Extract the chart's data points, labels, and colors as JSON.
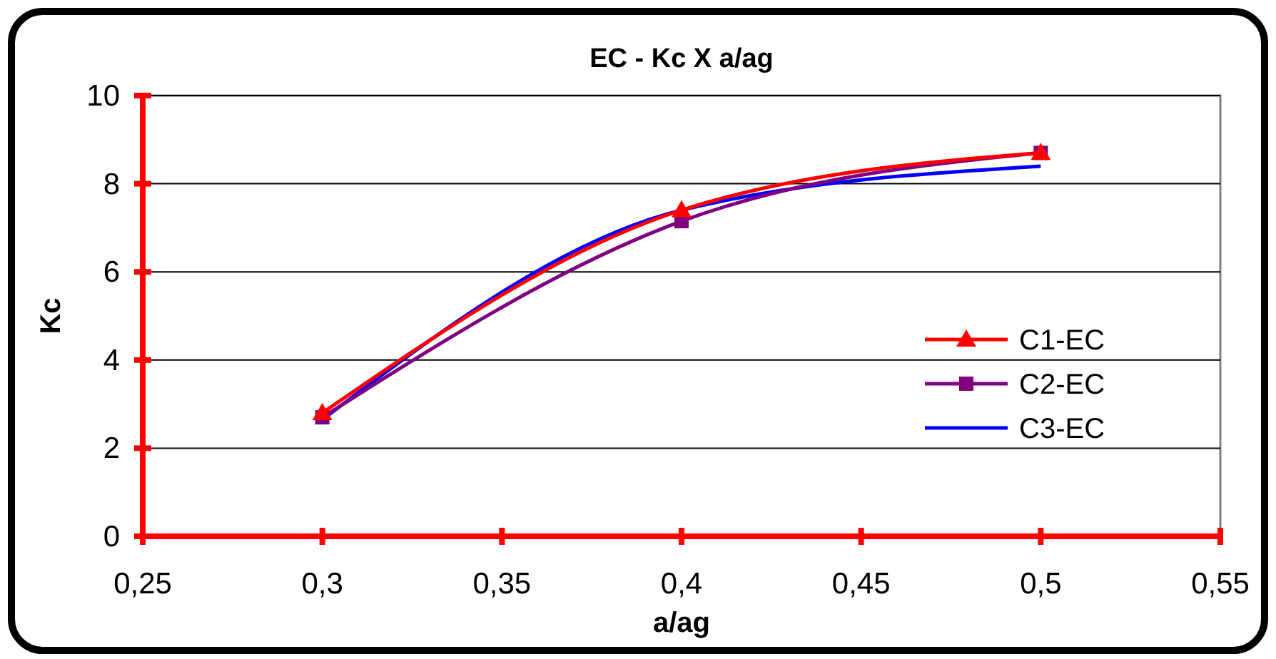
{
  "chart_data": {
    "type": "line",
    "title": "EC - Kc X a/ag",
    "xlabel": "a/ag",
    "ylabel": "Kc",
    "x": [
      0.3,
      0.4,
      0.5
    ],
    "series": [
      {
        "name": "C1-EC",
        "color": "#ff0000",
        "values": [
          2.8,
          7.4,
          8.7
        ],
        "marker": "triangle"
      },
      {
        "name": "C2-EC",
        "color": "#800080",
        "values": [
          2.7,
          7.15,
          8.7
        ],
        "marker": "square"
      },
      {
        "name": "C3-EC",
        "color": "#0000ff",
        "values": [
          2.65,
          7.4,
          8.4
        ],
        "marker": "none"
      }
    ],
    "xlim": [
      0.25,
      0.55
    ],
    "xticks": [
      {
        "value": 0.25,
        "label": "0,25"
      },
      {
        "value": 0.3,
        "label": "0,3"
      },
      {
        "value": 0.35,
        "label": "0,35"
      },
      {
        "value": 0.4,
        "label": "0,4"
      },
      {
        "value": 0.45,
        "label": "0,45"
      },
      {
        "value": 0.5,
        "label": "0,5"
      },
      {
        "value": 0.55,
        "label": "0,55"
      }
    ],
    "ylim": [
      0,
      10
    ],
    "yticks": [
      0,
      2,
      4,
      6,
      8,
      10
    ],
    "grid": "y",
    "legend": "right",
    "line_style": "solid"
  }
}
